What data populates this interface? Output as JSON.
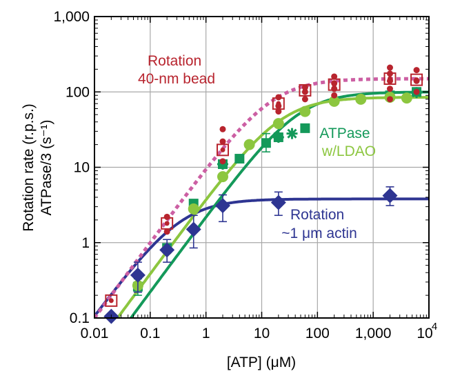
{
  "chart_data": {
    "type": "scatter",
    "x_scale": "log",
    "y_scale": "log",
    "xlim": [
      0.01,
      10000
    ],
    "ylim": [
      0.1,
      1000
    ],
    "grid": true,
    "x_tick_labels": [
      "0.01",
      "0.1",
      "1",
      "10",
      "100",
      "1,000",
      "10"
    ],
    "x_last_tick_superscript": "4",
    "y_tick_labels": [
      "0.1",
      "1",
      "10",
      "100",
      "1,000"
    ],
    "xlabel": "[ATP] (μM)",
    "ylabel_line1": "Rotation rate (r.p.s.)",
    "ylabel_line2": "ATPase/3 (s⁻¹)",
    "annotations": [
      {
        "lines": [
          "Rotation",
          "40-nm bead"
        ],
        "color": "#b8242e"
      },
      {
        "lines": [
          "ATPase"
        ],
        "color": "#14995a"
      },
      {
        "lines": [
          "w/LDAO"
        ],
        "color": "#8cc63f"
      },
      {
        "lines": [
          "Rotation",
          "~1 μm actin"
        ],
        "color": "#2e3592"
      }
    ],
    "series": [
      {
        "color": "#b8242e",
        "marker": "open-square-with-dots",
        "fit": "dashed",
        "fit_color": "#cc5fa3",
        "fit_params": {
          "vmax": 150,
          "km": 15
        },
        "points": [
          {
            "x": 0.02,
            "y": 0.17
          },
          {
            "x": 0.2,
            "y": 1.8
          },
          {
            "x": 2,
            "y": 17
          },
          {
            "x": 20,
            "y": 70
          },
          {
            "x": 60,
            "y": 105
          },
          {
            "x": 200,
            "y": 125
          },
          {
            "x": 2000,
            "y": 150
          },
          {
            "x": 6000,
            "y": 145
          }
        ],
        "scatter_points": [
          {
            "x": 0.2,
            "y": 1.4
          },
          {
            "x": 0.2,
            "y": 2.2
          },
          {
            "x": 2,
            "y": 12
          },
          {
            "x": 2,
            "y": 22
          },
          {
            "x": 2,
            "y": 32
          },
          {
            "x": 20,
            "y": 55
          },
          {
            "x": 20,
            "y": 65
          },
          {
            "x": 20,
            "y": 85
          },
          {
            "x": 60,
            "y": 80
          },
          {
            "x": 60,
            "y": 100
          },
          {
            "x": 60,
            "y": 115
          },
          {
            "x": 200,
            "y": 90
          },
          {
            "x": 200,
            "y": 110
          },
          {
            "x": 200,
            "y": 130
          },
          {
            "x": 200,
            "y": 160
          },
          {
            "x": 2000,
            "y": 80
          },
          {
            "x": 2000,
            "y": 110
          },
          {
            "x": 2000,
            "y": 140
          },
          {
            "x": 2000,
            "y": 175
          },
          {
            "x": 2000,
            "y": 210
          },
          {
            "x": 6000,
            "y": 100
          },
          {
            "x": 6000,
            "y": 140
          },
          {
            "x": 6000,
            "y": 195
          }
        ]
      },
      {
        "color": "#14995a",
        "marker": "square",
        "fit": "solid",
        "fit_params": {
          "vmax": 100,
          "km": 45
        },
        "points": [
          {
            "x": 0.06,
            "y": 0.26,
            "err": [
              0.2,
              0.33
            ]
          },
          {
            "x": 0.2,
            "y": 0.85
          },
          {
            "x": 0.6,
            "y": 3.3
          },
          {
            "x": 2,
            "y": 11
          },
          {
            "x": 4,
            "y": 13
          },
          {
            "x": 12,
            "y": 21,
            "err": [
              16,
              28
            ]
          },
          {
            "x": 20,
            "y": 25
          },
          {
            "x": 60,
            "y": 33
          },
          {
            "x": 2000,
            "y": 90
          },
          {
            "x": 6000,
            "y": 100
          }
        ],
        "star_points": [
          {
            "x": 2,
            "y": 11
          },
          {
            "x": 20,
            "y": 25
          },
          {
            "x": 35,
            "y": 28
          },
          {
            "x": 6000,
            "y": 98
          }
        ]
      },
      {
        "color": "#8cc63f",
        "marker": "circle",
        "fit": "solid",
        "fit_params": {
          "vmax": 85,
          "km": 22
        },
        "points": [
          {
            "x": 0.06,
            "y": 0.27
          },
          {
            "x": 0.2,
            "y": 0.8
          },
          {
            "x": 0.6,
            "y": 2.8
          },
          {
            "x": 2,
            "y": 7.5
          },
          {
            "x": 6,
            "y": 20
          },
          {
            "x": 20,
            "y": 38
          },
          {
            "x": 60,
            "y": 55
          },
          {
            "x": 200,
            "y": 75
          },
          {
            "x": 600,
            "y": 80
          },
          {
            "x": 2000,
            "y": 85
          },
          {
            "x": 4000,
            "y": 83
          }
        ]
      },
      {
        "color": "#2e3592",
        "marker": "diamond",
        "fit": "solid",
        "fit_params": {
          "vmax": 3.8,
          "km": 0.35
        },
        "points": [
          {
            "x": 0.02,
            "y": 0.105
          },
          {
            "x": 0.06,
            "y": 0.37,
            "err": [
              0.22,
              0.55
            ]
          },
          {
            "x": 0.2,
            "y": 0.8,
            "err": [
              0.55,
              1.1
            ]
          },
          {
            "x": 0.6,
            "y": 1.5,
            "err": [
              0.85,
              2.3
            ]
          },
          {
            "x": 2,
            "y": 3.1,
            "err": [
              1.9,
              4.3
            ]
          },
          {
            "x": 20,
            "y": 3.4,
            "err": [
              2.3,
              4.7
            ]
          },
          {
            "x": 2000,
            "y": 4.2,
            "err": [
              3.1,
              5.5
            ]
          }
        ]
      }
    ]
  }
}
